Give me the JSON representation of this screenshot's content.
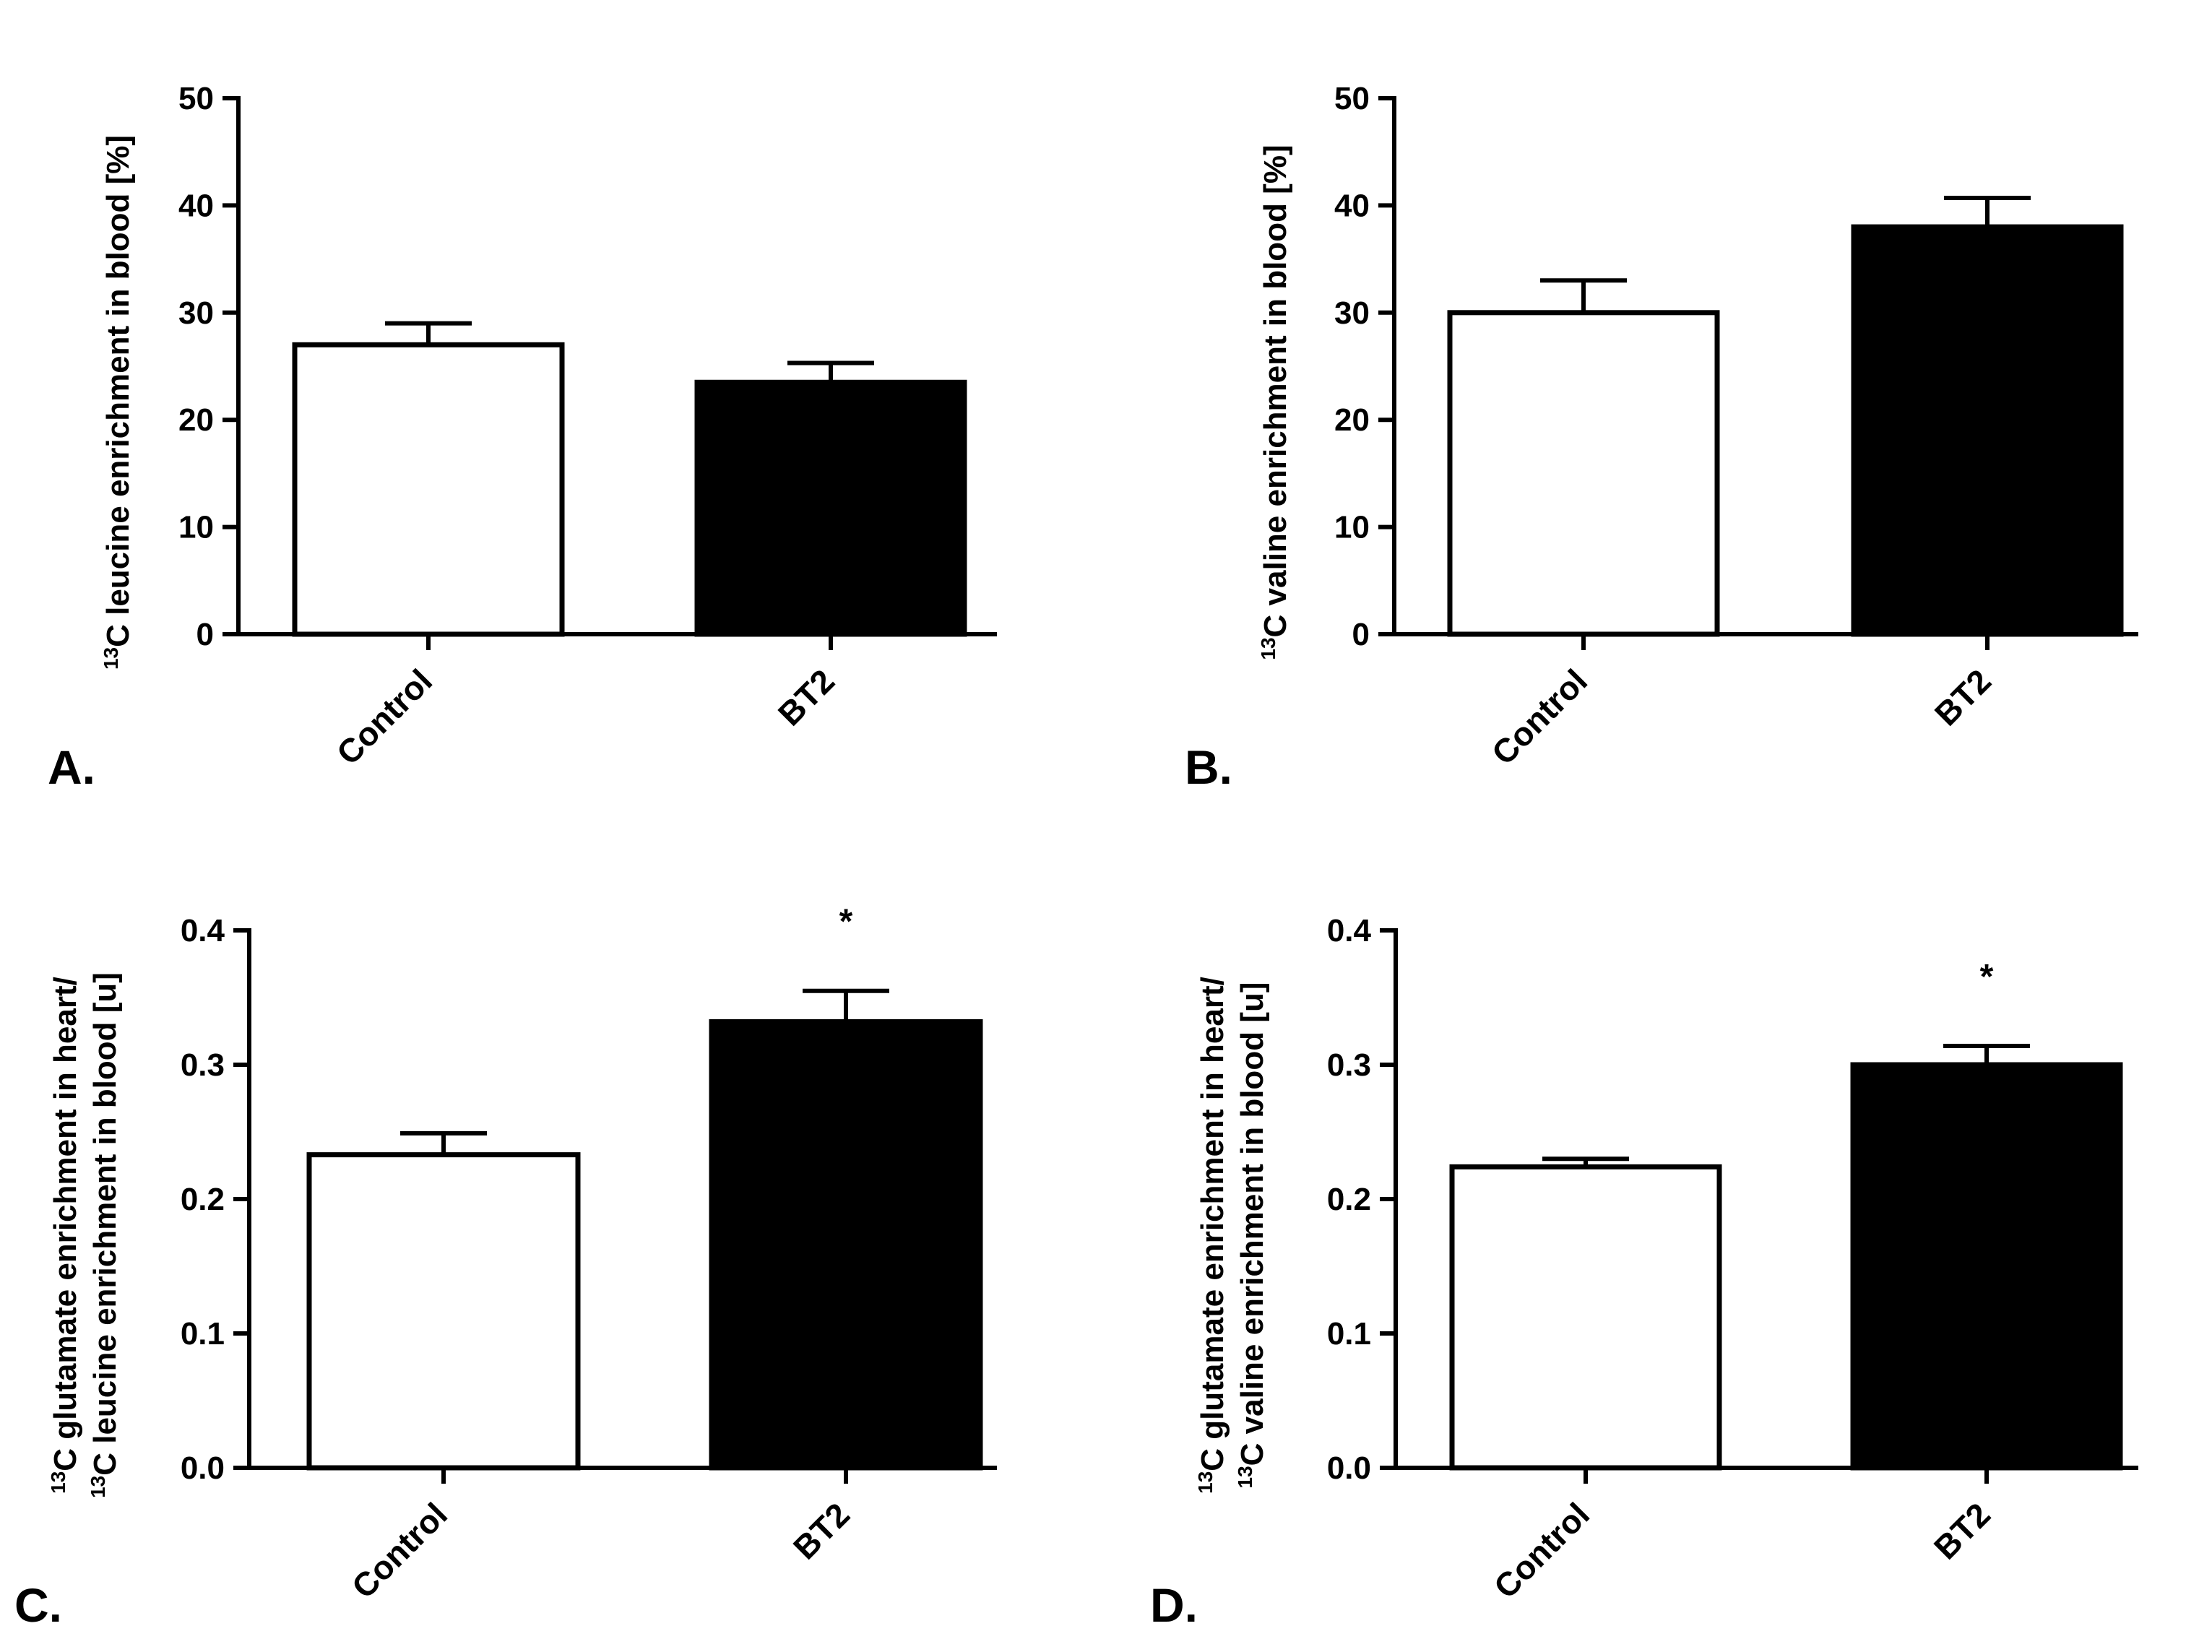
{
  "chart_data": [
    {
      "panel": "A.",
      "type": "bar",
      "categories": [
        "Control",
        "BT2"
      ],
      "values": [
        27.0,
        23.5
      ],
      "errors": [
        2.0,
        1.8
      ],
      "bar_colors": [
        "#ffffff",
        "#000000"
      ],
      "ylabel_lines": [
        {
          "sup": "13",
          "text": "C leucine enrichment in blood [%]"
        }
      ],
      "ylim": [
        0,
        50
      ],
      "yticks": [
        0,
        10,
        20,
        30,
        40,
        50
      ],
      "ytick_labels": [
        "0",
        "10",
        "20",
        "30",
        "40",
        "50"
      ],
      "annotations": [
        "",
        ""
      ]
    },
    {
      "panel": "B.",
      "type": "bar",
      "categories": [
        "Control",
        "BT2"
      ],
      "values": [
        30.0,
        38.0
      ],
      "errors": [
        3.0,
        2.7
      ],
      "bar_colors": [
        "#ffffff",
        "#000000"
      ],
      "ylabel_lines": [
        {
          "sup": "13",
          "text": "C valine enrichment in blood [%]"
        }
      ],
      "ylim": [
        0,
        50
      ],
      "yticks": [
        0,
        10,
        20,
        30,
        40,
        50
      ],
      "ytick_labels": [
        "0",
        "10",
        "20",
        "30",
        "40",
        "50"
      ],
      "annotations": [
        "",
        ""
      ]
    },
    {
      "panel": "C.",
      "type": "bar",
      "categories": [
        "Control",
        "BT2"
      ],
      "values": [
        0.233,
        0.332
      ],
      "errors": [
        0.016,
        0.023
      ],
      "bar_colors": [
        "#ffffff",
        "#000000"
      ],
      "ylabel_lines": [
        {
          "sup": "13",
          "text": "C glutamate enrichment in heart/"
        },
        {
          "sup": "13",
          "text": "C leucine enrichment in blood [u]"
        }
      ],
      "ylim": [
        0,
        0.4
      ],
      "yticks": [
        0,
        0.1,
        0.2,
        0.3,
        0.4
      ],
      "ytick_labels": [
        "0.0",
        "0.1",
        "0.2",
        "0.3",
        "0.4"
      ],
      "annotations": [
        "",
        "*"
      ]
    },
    {
      "panel": "D.",
      "type": "bar",
      "categories": [
        "Control",
        "BT2"
      ],
      "values": [
        0.224,
        0.3
      ],
      "errors": [
        0.006,
        0.014
      ],
      "bar_colors": [
        "#ffffff",
        "#000000"
      ],
      "ylabel_lines": [
        {
          "sup": "13",
          "text": "C glutamate enrichment in heart/"
        },
        {
          "sup": "13",
          "text": "C valine enrichment in blood [u]"
        }
      ],
      "ylim": [
        0,
        0.4
      ],
      "yticks": [
        0,
        0.1,
        0.2,
        0.3,
        0.4
      ],
      "ytick_labels": [
        "0.0",
        "0.1",
        "0.2",
        "0.3",
        "0.4"
      ],
      "annotations": [
        "",
        "*"
      ]
    }
  ]
}
